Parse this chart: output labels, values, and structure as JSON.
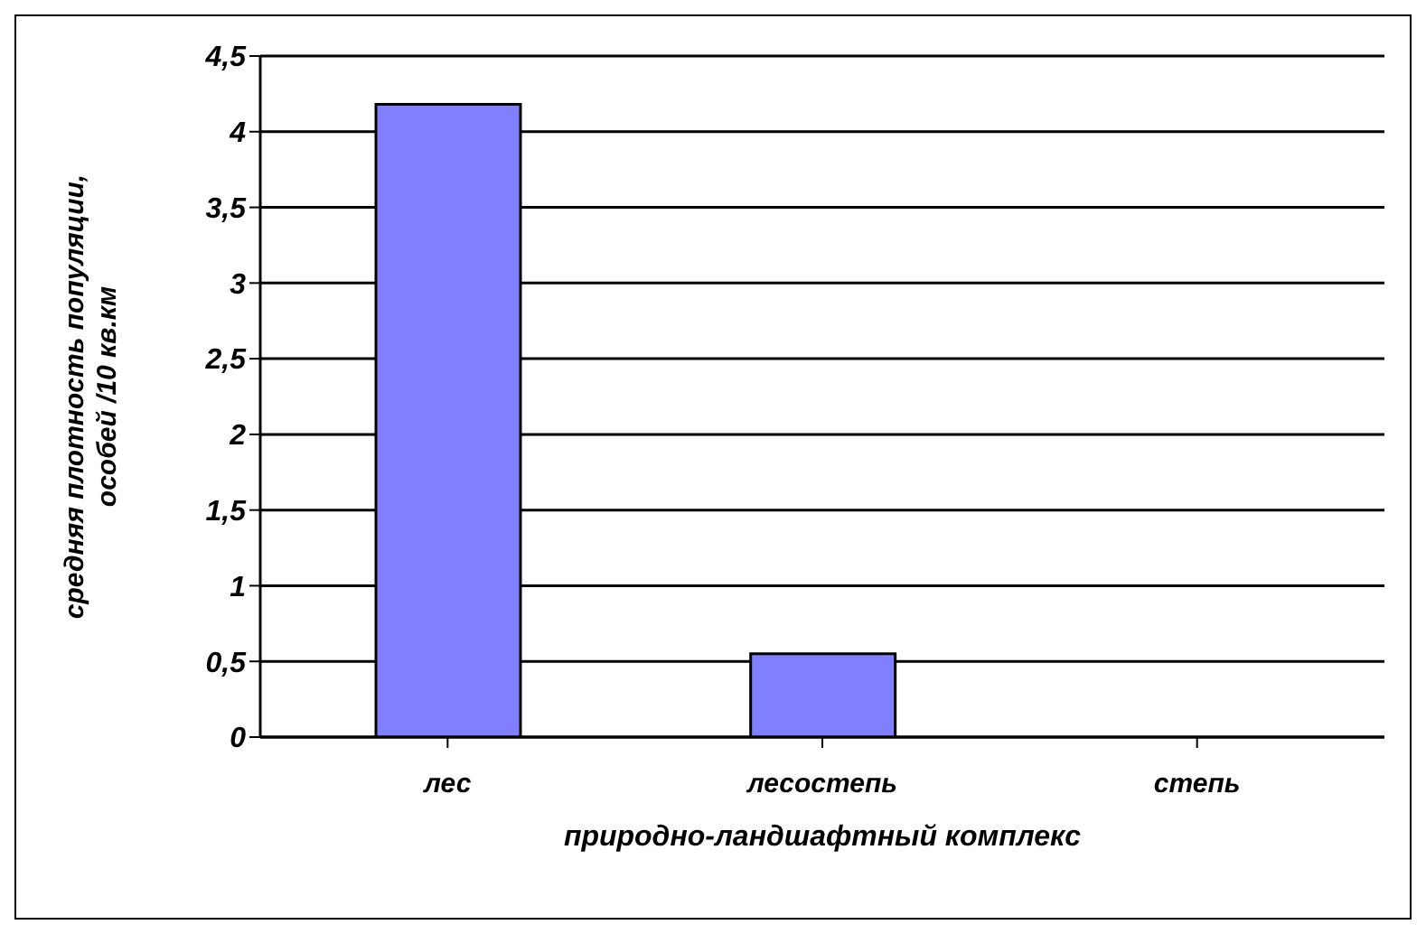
{
  "chart_data": {
    "type": "bar",
    "xlabel": "природно-ландшафтный комплекс",
    "ylabel": "средняя плотность популяции, особей /10 кв.км",
    "categories": [
      "лес",
      "лесостепь",
      "степь"
    ],
    "values": [
      4.18,
      0.55,
      0
    ],
    "color": "#8080ff",
    "ylim": [
      0,
      4.5
    ],
    "yticks": [
      0,
      {
        "value": 0.5,
        "label": "0,5"
      },
      1,
      {
        "value": 1.5,
        "label": "1,5"
      },
      2,
      {
        "value": 2.5,
        "label": "2,5"
      },
      3,
      {
        "value": 3.5,
        "label": "3,5"
      },
      4,
      {
        "value": 4.5,
        "label": "4,5"
      }
    ],
    "grid": "y"
  }
}
